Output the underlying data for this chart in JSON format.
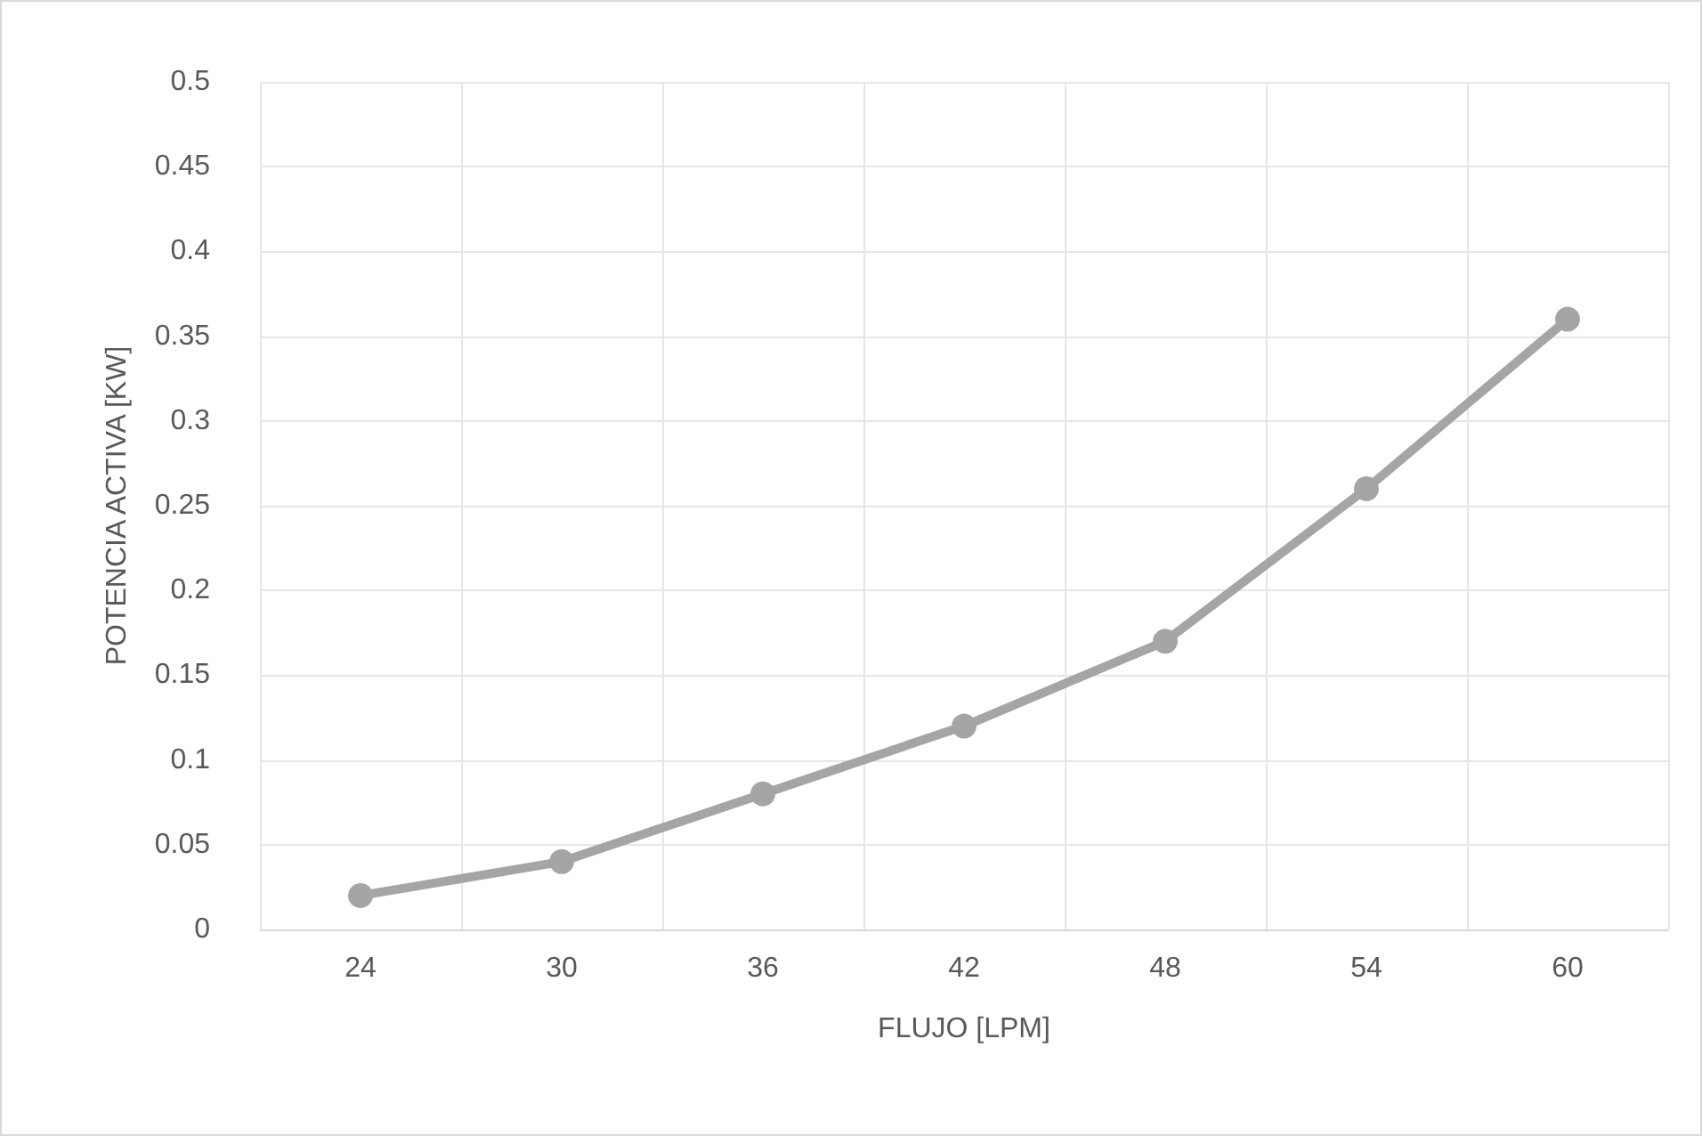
{
  "chart_data": {
    "type": "line",
    "xlabel": "FLUJO [LPM]",
    "ylabel": "POTENCIA ACTIVA [KW]",
    "categories": [
      "24",
      "30",
      "36",
      "42",
      "48",
      "54",
      "60"
    ],
    "series": [
      {
        "color": "#a5a5a5",
        "values": [
          0.02,
          0.04,
          0.08,
          0.12,
          0.17,
          0.26,
          0.36
        ]
      }
    ],
    "ylim": [
      0,
      0.5
    ],
    "yticks": [
      0,
      0.05,
      0.1,
      0.15,
      0.2,
      0.25,
      0.3,
      0.35,
      0.4,
      0.45,
      0.5
    ],
    "grid": true,
    "marker": "circle",
    "line_style": "solid"
  }
}
